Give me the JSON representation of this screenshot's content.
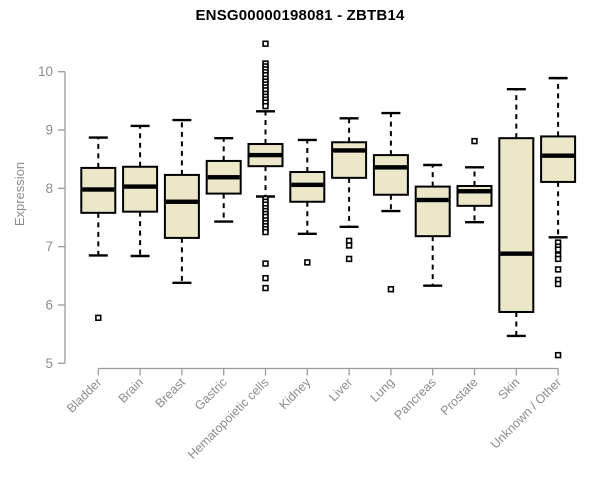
{
  "chart_data": {
    "type": "boxplot",
    "title": "ENSG00000198081 - ZBTB14",
    "ylabel": "Expression",
    "xlabel": "",
    "ylim": [
      5,
      10
    ],
    "yticks": [
      5,
      6,
      7,
      8,
      9,
      10
    ],
    "grid": false,
    "legend": false,
    "categories": [
      "Bladder",
      "Brain",
      "Breast",
      "Gastric",
      "Hematopoietic cells",
      "Kidney",
      "Liver",
      "Lung",
      "Pancreas",
      "Prostate",
      "Skin",
      "Unknown / Other"
    ],
    "series": [
      {
        "name": "Bladder",
        "low": 6.85,
        "q1": 7.58,
        "median": 7.98,
        "q3": 8.35,
        "high": 8.87,
        "outliers": [
          5.78
        ]
      },
      {
        "name": "Brain",
        "low": 6.84,
        "q1": 7.6,
        "median": 8.03,
        "q3": 8.37,
        "high": 9.07,
        "outliers": []
      },
      {
        "name": "Breast",
        "low": 6.38,
        "q1": 7.15,
        "median": 7.77,
        "q3": 8.23,
        "high": 9.17,
        "outliers": []
      },
      {
        "name": "Gastric",
        "low": 7.43,
        "q1": 7.91,
        "median": 8.19,
        "q3": 8.47,
        "high": 8.86,
        "outliers": []
      },
      {
        "name": "Hematopoietic cells",
        "low": 7.86,
        "q1": 8.38,
        "median": 8.57,
        "q3": 8.76,
        "high": 9.32,
        "outliers": [
          10.48,
          10.14,
          10.09,
          10.04,
          9.99,
          9.94,
          9.88,
          9.83,
          9.78,
          9.73,
          9.68,
          9.62,
          9.57,
          9.52,
          9.47,
          9.41,
          7.82,
          7.77,
          7.72,
          7.66,
          7.61,
          7.56,
          7.51,
          7.45,
          7.4,
          7.35,
          7.3,
          7.25,
          6.71,
          6.46,
          6.29
        ]
      },
      {
        "name": "Kidney",
        "low": 7.22,
        "q1": 7.77,
        "median": 8.06,
        "q3": 8.28,
        "high": 8.83,
        "outliers": [
          6.73
        ]
      },
      {
        "name": "Liver",
        "low": 7.34,
        "q1": 8.18,
        "median": 8.65,
        "q3": 8.79,
        "high": 9.2,
        "outliers": [
          7.1,
          7.02,
          6.79
        ]
      },
      {
        "name": "Lung",
        "low": 7.61,
        "q1": 7.89,
        "median": 8.36,
        "q3": 8.57,
        "high": 9.29,
        "outliers": [
          6.27
        ]
      },
      {
        "name": "Pancreas",
        "low": 6.33,
        "q1": 7.18,
        "median": 7.8,
        "q3": 8.03,
        "high": 8.4,
        "outliers": []
      },
      {
        "name": "Prostate",
        "low": 7.42,
        "q1": 7.7,
        "median": 7.95,
        "q3": 8.04,
        "high": 8.36,
        "outliers": [
          8.81
        ]
      },
      {
        "name": "Skin",
        "low": 5.47,
        "q1": 5.88,
        "median": 6.88,
        "q3": 8.86,
        "high": 9.7,
        "outliers": []
      },
      {
        "name": "Unknown / Other",
        "low": 7.16,
        "q1": 8.11,
        "median": 8.56,
        "q3": 8.89,
        "high": 9.89,
        "outliers": [
          7.07,
          7.0,
          6.95,
          6.85,
          6.79,
          6.61,
          6.43,
          6.36,
          5.14
        ]
      }
    ],
    "colors": {
      "background": "#FFFFFF",
      "box_fill": "#ECE7C8",
      "box_stroke": "#000000",
      "median": "#000000",
      "whisker": "#000000",
      "outlier_stroke": "#000000",
      "outlier_fill": "#FFFFFF",
      "axis_line": "#9B9B9B",
      "tick_label": "#8C8C8C",
      "title": "#000000"
    }
  }
}
